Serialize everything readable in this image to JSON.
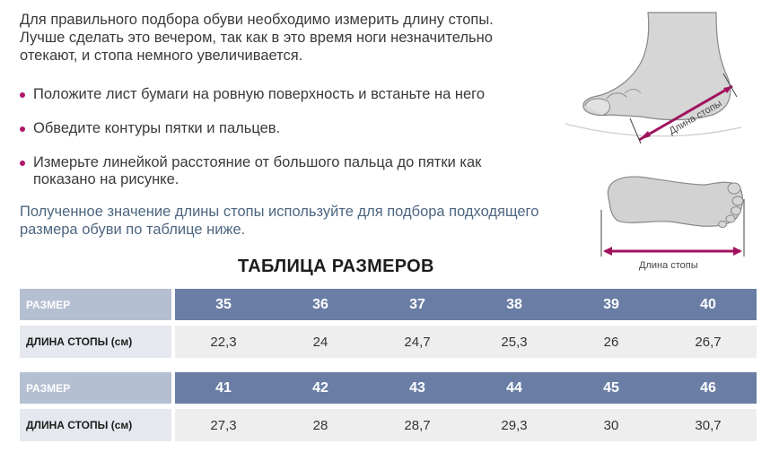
{
  "intro": {
    "line1": "Для правильного подбора обуви необходимо измерить длину стопы.",
    "line2": "Лучше сделать это вечером, так как в это время ноги незначительно",
    "line3": "отекают, и стопа немного увеличивается."
  },
  "bullets": [
    {
      "line1": "Положите лист бумаги на ровную поверхность и встаньте на него"
    },
    {
      "line1": "Обведите контуры пятки и пальцев."
    },
    {
      "line1": "Измерьте линейкой расстояние от большого пальца до пятки как",
      "line2": "показано на рисунке."
    }
  ],
  "note": {
    "line1": "Полученное значение длины стопы используйте для подбора подходящего",
    "line2": "размера обуви по таблице ниже."
  },
  "illustrations": {
    "side_label": "Длина стопы",
    "sole_label": "Длина стопы",
    "accent_color": "#a0125e"
  },
  "table_title": "ТАБЛИЦА РАЗМЕРОВ",
  "size_tables": [
    {
      "size_label": "РАЗМЕР",
      "length_label": "ДЛИНА СТОПЫ (см)",
      "sizes": [
        "35",
        "36",
        "37",
        "38",
        "39",
        "40"
      ],
      "lengths": [
        "22,3",
        "24",
        "24,7",
        "25,3",
        "26",
        "26,7"
      ]
    },
    {
      "size_label": "РАЗМЕР",
      "length_label": "ДЛИНА СТОПЫ (см)",
      "sizes": [
        "41",
        "42",
        "43",
        "44",
        "45",
        "46"
      ],
      "lengths": [
        "27,3",
        "28",
        "28,7",
        "29,3",
        "30",
        "30,7"
      ]
    }
  ]
}
